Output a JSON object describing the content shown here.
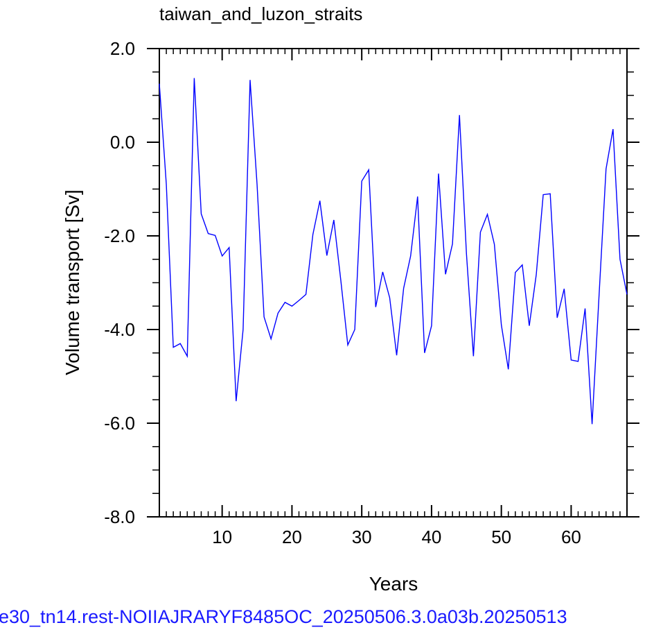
{
  "chart_data": {
    "type": "line",
    "title": "taiwan_and_luzon_straits",
    "xlabel": "Years",
    "ylabel": "Volume transport [Sv]",
    "xlim": [
      1,
      68
    ],
    "ylim": [
      -8.0,
      2.0
    ],
    "xticks": [
      10,
      20,
      30,
      40,
      50,
      60
    ],
    "xtick_labels": [
      "10",
      "20",
      "30",
      "40",
      "50",
      "60"
    ],
    "yticks": [
      -8.0,
      -6.0,
      -4.0,
      -2.0,
      0.0,
      2.0
    ],
    "ytick_labels": [
      "-8.0",
      "-6.0",
      "-4.0",
      "-2.0",
      "0.0",
      "2.0"
    ],
    "grid": false,
    "series": [
      {
        "color": "#0000ff",
        "x": [
          1,
          2,
          3,
          4,
          5,
          6,
          7,
          8,
          9,
          10,
          11,
          12,
          13,
          14,
          15,
          16,
          17,
          18,
          19,
          20,
          21,
          22,
          23,
          24,
          25,
          26,
          27,
          28,
          29,
          30,
          31,
          32,
          33,
          34,
          35,
          36,
          37,
          38,
          39,
          40,
          41,
          42,
          43,
          44,
          45,
          46,
          47,
          48,
          49,
          50,
          51,
          52,
          53,
          54,
          55,
          56,
          57,
          58,
          59,
          60,
          61,
          62,
          63,
          64,
          65,
          66,
          67,
          68
        ],
        "y": [
          1.25,
          -0.9,
          -4.38,
          -4.3,
          -4.57,
          1.37,
          -1.53,
          -1.95,
          -1.99,
          -2.43,
          -2.25,
          -5.53,
          -4.0,
          1.33,
          -0.9,
          -3.73,
          -4.2,
          -3.65,
          -3.42,
          -3.5,
          -3.38,
          -3.25,
          -1.97,
          -1.25,
          -2.42,
          -1.66,
          -2.95,
          -4.33,
          -4.0,
          -0.83,
          -0.59,
          -3.52,
          -2.77,
          -3.32,
          -4.55,
          -3.12,
          -2.43,
          -1.16,
          -4.5,
          -3.92,
          -0.67,
          -2.82,
          -2.17,
          0.58,
          -2.38,
          -4.57,
          -1.92,
          -1.54,
          -2.18,
          -3.9,
          -4.85,
          -2.78,
          -2.62,
          -3.92,
          -2.83,
          -1.12,
          -1.1,
          -3.75,
          -3.13,
          -4.65,
          -4.68,
          -3.55,
          -6.02,
          -3.27,
          -0.57,
          0.28,
          -2.5,
          -3.25
        ]
      }
    ]
  },
  "footer": {
    "caption": "e30_tn14.rest-NOIIAJRARYF8485OC_20250506.3.0a03b.20250513"
  }
}
